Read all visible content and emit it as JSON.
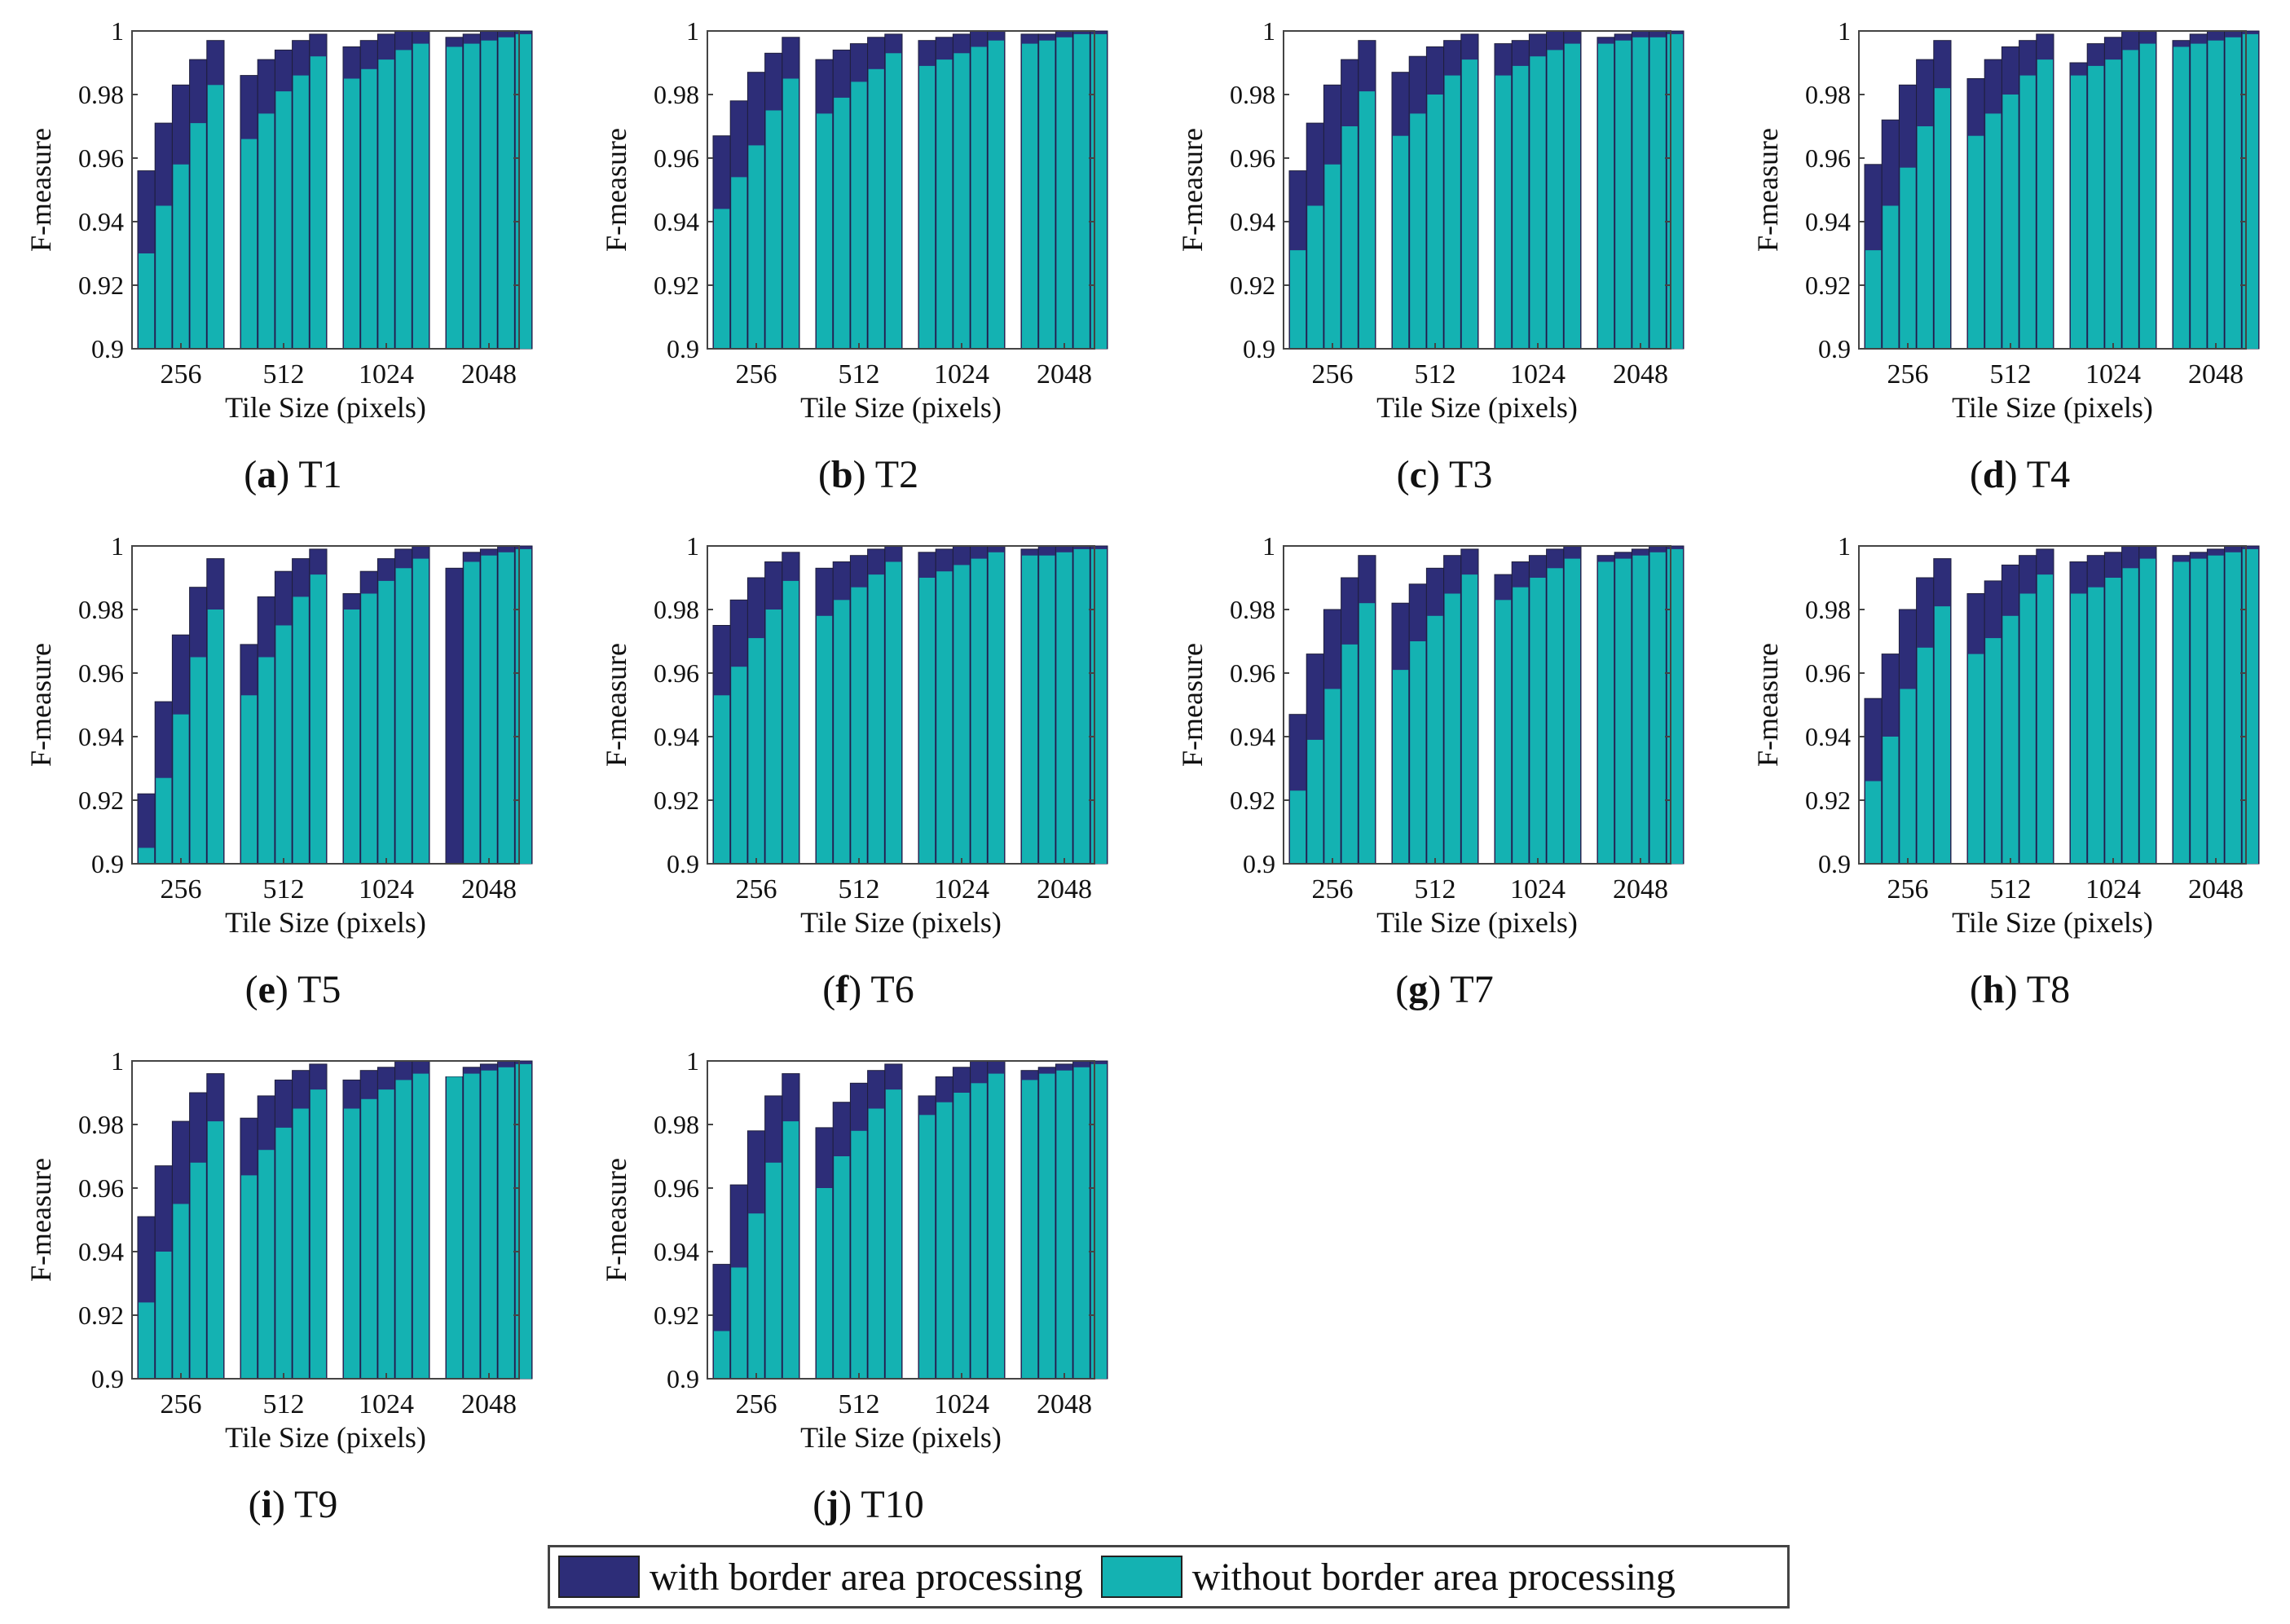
{
  "colors": {
    "with": "#2d2d78",
    "without": "#14b2b2",
    "axis": "#444444",
    "text": "#111111"
  },
  "legend": {
    "with_label": "with border area processing",
    "without_label": "without border area processing"
  },
  "chart_data": [
    {
      "type": "bar",
      "stacked": true,
      "panel_letter": "a",
      "panel_name": "T1",
      "xlabel": "Tile Size (pixels)",
      "ylabel": "F-measure",
      "categories": [
        "256",
        "512",
        "1024",
        "2048"
      ],
      "ylim": [
        0.9,
        1
      ],
      "yticks": [
        "0.9",
        "0.92",
        "0.94",
        "0.96",
        "0.98",
        "1"
      ],
      "series": [
        {
          "name": "without border area processing",
          "values": [
            [
              0.93,
              0.945,
              0.958,
              0.971,
              0.983
            ],
            [
              0.966,
              0.974,
              0.981,
              0.986,
              0.992
            ],
            [
              0.985,
              0.988,
              0.991,
              0.994,
              0.996
            ],
            [
              0.995,
              0.996,
              0.997,
              0.998,
              0.999
            ]
          ]
        },
        {
          "name": "with border area processing",
          "values": [
            [
              0.956,
              0.971,
              0.983,
              0.991,
              0.997
            ],
            [
              0.986,
              0.991,
              0.994,
              0.997,
              0.999
            ],
            [
              0.995,
              0.997,
              0.999,
              1.0,
              1.0
            ],
            [
              0.998,
              0.999,
              1.0,
              1.0,
              1.0
            ]
          ]
        }
      ]
    },
    {
      "type": "bar",
      "stacked": true,
      "panel_letter": "b",
      "panel_name": "T2",
      "xlabel": "Tile Size (pixels)",
      "ylabel": "F-measure",
      "categories": [
        "256",
        "512",
        "1024",
        "2048"
      ],
      "ylim": [
        0.9,
        1
      ],
      "yticks": [
        "0.9",
        "0.92",
        "0.94",
        "0.96",
        "0.98",
        "1"
      ],
      "series": [
        {
          "name": "without border area processing",
          "values": [
            [
              0.944,
              0.954,
              0.964,
              0.975,
              0.985
            ],
            [
              0.974,
              0.979,
              0.984,
              0.988,
              0.993
            ],
            [
              0.989,
              0.991,
              0.993,
              0.995,
              0.997
            ],
            [
              0.996,
              0.997,
              0.998,
              0.999,
              0.999
            ]
          ]
        },
        {
          "name": "with border area processing",
          "values": [
            [
              0.967,
              0.978,
              0.987,
              0.993,
              0.998
            ],
            [
              0.991,
              0.994,
              0.996,
              0.998,
              0.999
            ],
            [
              0.997,
              0.998,
              0.999,
              1.0,
              1.0
            ],
            [
              0.999,
              0.999,
              1.0,
              1.0,
              1.0
            ]
          ]
        }
      ]
    },
    {
      "type": "bar",
      "stacked": true,
      "panel_letter": "c",
      "panel_name": "T3",
      "xlabel": "Tile Size (pixels)",
      "ylabel": "F-measure",
      "categories": [
        "256",
        "512",
        "1024",
        "2048"
      ],
      "ylim": [
        0.9,
        1
      ],
      "yticks": [
        "0.9",
        "0.92",
        "0.94",
        "0.96",
        "0.98",
        "1"
      ],
      "series": [
        {
          "name": "without border area processing",
          "values": [
            [
              0.931,
              0.945,
              0.958,
              0.97,
              0.981
            ],
            [
              0.967,
              0.974,
              0.98,
              0.986,
              0.991
            ],
            [
              0.986,
              0.989,
              0.992,
              0.994,
              0.996
            ],
            [
              0.996,
              0.997,
              0.998,
              0.998,
              0.999
            ]
          ]
        },
        {
          "name": "with border area processing",
          "values": [
            [
              0.956,
              0.971,
              0.983,
              0.991,
              0.997
            ],
            [
              0.987,
              0.992,
              0.995,
              0.997,
              0.999
            ],
            [
              0.996,
              0.997,
              0.999,
              1.0,
              1.0
            ],
            [
              0.998,
              0.999,
              1.0,
              1.0,
              1.0
            ]
          ]
        }
      ]
    },
    {
      "type": "bar",
      "stacked": true,
      "panel_letter": "d",
      "panel_name": "T4",
      "xlabel": "Tile Size (pixels)",
      "ylabel": "F-measure",
      "categories": [
        "256",
        "512",
        "1024",
        "2048"
      ],
      "ylim": [
        0.9,
        1
      ],
      "yticks": [
        "0.9",
        "0.92",
        "0.94",
        "0.96",
        "0.98",
        "1"
      ],
      "series": [
        {
          "name": "without border area processing",
          "values": [
            [
              0.931,
              0.945,
              0.957,
              0.97,
              0.982
            ],
            [
              0.967,
              0.974,
              0.98,
              0.986,
              0.991
            ],
            [
              0.986,
              0.989,
              0.991,
              0.994,
              0.996
            ],
            [
              0.995,
              0.996,
              0.997,
              0.998,
              0.999
            ]
          ]
        },
        {
          "name": "with border area processing",
          "values": [
            [
              0.958,
              0.972,
              0.983,
              0.991,
              0.997
            ],
            [
              0.985,
              0.991,
              0.995,
              0.997,
              0.999
            ],
            [
              0.99,
              0.996,
              0.998,
              1.0,
              1.0
            ],
            [
              0.997,
              0.999,
              1.0,
              1.0,
              1.0
            ]
          ]
        }
      ]
    },
    {
      "type": "bar",
      "stacked": true,
      "panel_letter": "e",
      "panel_name": "T5",
      "xlabel": "Tile Size (pixels)",
      "ylabel": "F-measure",
      "categories": [
        "256",
        "512",
        "1024",
        "2048"
      ],
      "ylim": [
        0.9,
        1
      ],
      "yticks": [
        "0.9",
        "0.92",
        "0.94",
        "0.96",
        "0.98",
        "1"
      ],
      "series": [
        {
          "name": "without border area processing",
          "values": [
            [
              0.905,
              0.927,
              0.947,
              0.965,
              0.98
            ],
            [
              0.953,
              0.965,
              0.975,
              0.984,
              0.991
            ],
            [
              0.98,
              0.985,
              0.989,
              0.993,
              0.996
            ],
            [
              0.9,
              0.995,
              0.997,
              0.998,
              0.999
            ]
          ]
        },
        {
          "name": "with border area processing",
          "values": [
            [
              0.922,
              0.951,
              0.972,
              0.987,
              0.996
            ],
            [
              0.969,
              0.984,
              0.992,
              0.996,
              0.999
            ],
            [
              0.985,
              0.992,
              0.996,
              0.999,
              1.0
            ],
            [
              0.993,
              0.998,
              0.999,
              1.0,
              1.0
            ]
          ]
        }
      ]
    },
    {
      "type": "bar",
      "stacked": true,
      "panel_letter": "f",
      "panel_name": "T6",
      "xlabel": "Tile Size (pixels)",
      "ylabel": "F-measure",
      "categories": [
        "256",
        "512",
        "1024",
        "2048"
      ],
      "ylim": [
        0.9,
        1
      ],
      "yticks": [
        "0.9",
        "0.92",
        "0.94",
        "0.96",
        "0.98",
        "1"
      ],
      "series": [
        {
          "name": "without border area processing",
          "values": [
            [
              0.953,
              0.962,
              0.971,
              0.98,
              0.989
            ],
            [
              0.978,
              0.983,
              0.987,
              0.991,
              0.995
            ],
            [
              0.99,
              0.992,
              0.994,
              0.996,
              0.998
            ],
            [
              0.997,
              0.997,
              0.998,
              0.999,
              0.999
            ]
          ]
        },
        {
          "name": "with border area processing",
          "values": [
            [
              0.975,
              0.983,
              0.99,
              0.995,
              0.998
            ],
            [
              0.993,
              0.995,
              0.997,
              0.999,
              1.0
            ],
            [
              0.998,
              0.999,
              1.0,
              1.0,
              1.0
            ],
            [
              0.999,
              1.0,
              1.0,
              1.0,
              1.0
            ]
          ]
        }
      ]
    },
    {
      "type": "bar",
      "stacked": true,
      "panel_letter": "g",
      "panel_name": "T7",
      "xlabel": "Tile Size (pixels)",
      "ylabel": "F-measure",
      "categories": [
        "256",
        "512",
        "1024",
        "2048"
      ],
      "ylim": [
        0.9,
        1
      ],
      "yticks": [
        "0.9",
        "0.92",
        "0.94",
        "0.96",
        "0.98",
        "1"
      ],
      "series": [
        {
          "name": "without border area processing",
          "values": [
            [
              0.923,
              0.939,
              0.955,
              0.969,
              0.982
            ],
            [
              0.961,
              0.97,
              0.978,
              0.985,
              0.991
            ],
            [
              0.983,
              0.987,
              0.99,
              0.993,
              0.996
            ],
            [
              0.995,
              0.996,
              0.997,
              0.998,
              0.999
            ]
          ]
        },
        {
          "name": "with border area processing",
          "values": [
            [
              0.947,
              0.966,
              0.98,
              0.99,
              0.997
            ],
            [
              0.982,
              0.988,
              0.993,
              0.997,
              0.999
            ],
            [
              0.991,
              0.995,
              0.997,
              0.999,
              1.0
            ],
            [
              0.997,
              0.998,
              0.999,
              1.0,
              1.0
            ]
          ]
        }
      ]
    },
    {
      "type": "bar",
      "stacked": true,
      "panel_letter": "h",
      "panel_name": "T8",
      "xlabel": "Tile Size (pixels)",
      "ylabel": "F-measure",
      "categories": [
        "256",
        "512",
        "1024",
        "2048"
      ],
      "ylim": [
        0.9,
        1
      ],
      "yticks": [
        "0.9",
        "0.92",
        "0.94",
        "0.96",
        "0.98",
        "1"
      ],
      "series": [
        {
          "name": "without border area processing",
          "values": [
            [
              0.926,
              0.94,
              0.955,
              0.968,
              0.981
            ],
            [
              0.966,
              0.971,
              0.978,
              0.985,
              0.991
            ],
            [
              0.985,
              0.987,
              0.99,
              0.993,
              0.996
            ],
            [
              0.995,
              0.996,
              0.997,
              0.998,
              0.999
            ]
          ]
        },
        {
          "name": "with border area processing",
          "values": [
            [
              0.952,
              0.966,
              0.98,
              0.99,
              0.996
            ],
            [
              0.985,
              0.989,
              0.994,
              0.997,
              0.999
            ],
            [
              0.995,
              0.997,
              0.998,
              1.0,
              1.0
            ],
            [
              0.997,
              0.998,
              0.999,
              1.0,
              1.0
            ]
          ]
        }
      ]
    },
    {
      "type": "bar",
      "stacked": true,
      "panel_letter": "i",
      "panel_name": "T9",
      "xlabel": "Tile Size (pixels)",
      "ylabel": "F-measure",
      "categories": [
        "256",
        "512",
        "1024",
        "2048"
      ],
      "ylim": [
        0.9,
        1
      ],
      "yticks": [
        "0.9",
        "0.92",
        "0.94",
        "0.96",
        "0.98",
        "1"
      ],
      "series": [
        {
          "name": "without border area processing",
          "values": [
            [
              0.924,
              0.94,
              0.955,
              0.968,
              0.981
            ],
            [
              0.964,
              0.972,
              0.979,
              0.985,
              0.991
            ],
            [
              0.985,
              0.988,
              0.991,
              0.994,
              0.996
            ],
            [
              0.995,
              0.996,
              0.997,
              0.998,
              0.999
            ]
          ]
        },
        {
          "name": "with border area processing",
          "values": [
            [
              0.951,
              0.967,
              0.981,
              0.99,
              0.996
            ],
            [
              0.982,
              0.989,
              0.994,
              0.997,
              0.999
            ],
            [
              0.994,
              0.997,
              0.998,
              1.0,
              1.0
            ],
            [
              0.995,
              0.998,
              0.999,
              1.0,
              1.0
            ]
          ]
        }
      ]
    },
    {
      "type": "bar",
      "stacked": true,
      "panel_letter": "j",
      "panel_name": "T10",
      "xlabel": "Tile Size (pixels)",
      "ylabel": "F-measure",
      "categories": [
        "256",
        "512",
        "1024",
        "2048"
      ],
      "ylim": [
        0.9,
        1
      ],
      "yticks": [
        "0.9",
        "0.92",
        "0.94",
        "0.96",
        "0.98",
        "1"
      ],
      "series": [
        {
          "name": "without border area processing",
          "values": [
            [
              0.915,
              0.935,
              0.952,
              0.968,
              0.981
            ],
            [
              0.96,
              0.97,
              0.978,
              0.985,
              0.991
            ],
            [
              0.983,
              0.987,
              0.99,
              0.993,
              0.996
            ],
            [
              0.994,
              0.996,
              0.997,
              0.998,
              0.999
            ]
          ]
        },
        {
          "name": "with border area processing",
          "values": [
            [
              0.936,
              0.961,
              0.978,
              0.989,
              0.996
            ],
            [
              0.979,
              0.987,
              0.993,
              0.997,
              0.999
            ],
            [
              0.989,
              0.995,
              0.998,
              1.0,
              1.0
            ],
            [
              0.997,
              0.998,
              0.999,
              1.0,
              1.0
            ]
          ]
        }
      ]
    }
  ]
}
